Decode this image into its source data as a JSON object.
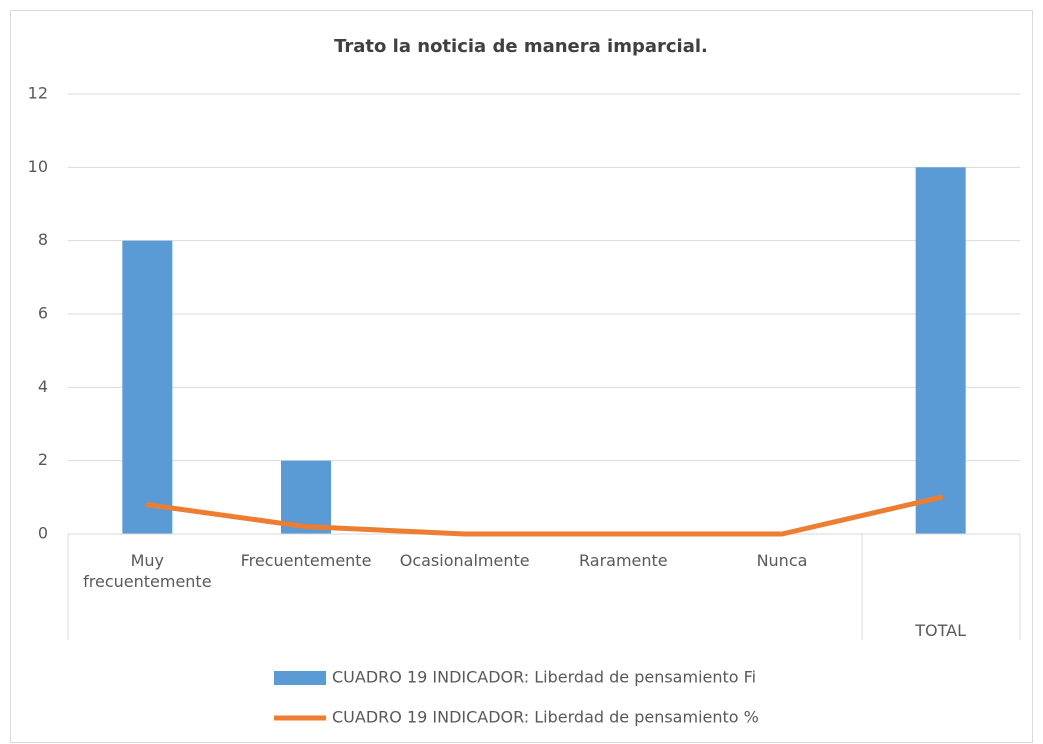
{
  "chart_data": {
    "type": "bar",
    "title": "Trato la noticia de manera imparcial.",
    "categories": [
      "Muy frecuentemente",
      "Frecuentemente",
      "Ocasionalmente",
      "Raramente",
      "Nunca",
      "TOTAL"
    ],
    "series": [
      {
        "name": "CUADRO 19 INDICADOR: Liberdad de pensamiento  Fi",
        "type": "bar",
        "color": "#5b9bd5",
        "values": [
          8,
          2,
          0,
          0,
          0,
          10
        ]
      },
      {
        "name": "CUADRO 19 INDICADOR: Liberdad de pensamiento  %",
        "type": "line",
        "color": "#ed7d31",
        "values": [
          0.8,
          0.2,
          0,
          0,
          0,
          1
        ]
      }
    ],
    "ylim": [
      0,
      12
    ],
    "yticks": [
      0,
      2,
      4,
      6,
      8,
      10,
      12
    ],
    "grid": true,
    "legend": "bottom"
  }
}
